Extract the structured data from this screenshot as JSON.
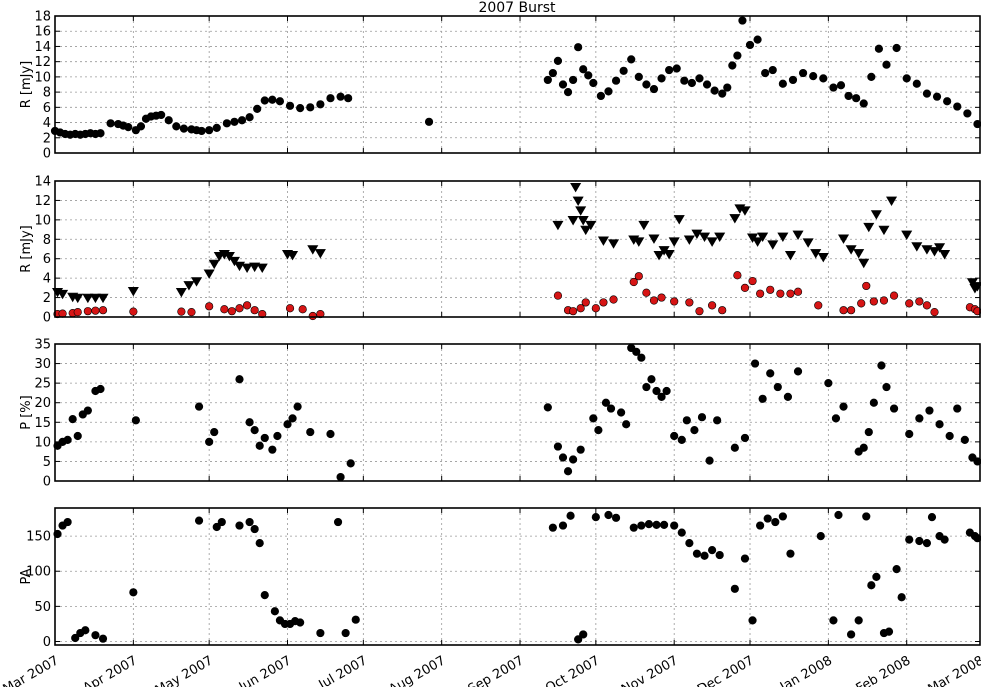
{
  "chart_data": [
    {
      "type": "scatter",
      "title": "2007 Burst",
      "ylabel": "R [mJy]",
      "ylim": [
        0,
        18
      ],
      "yticks": [
        0,
        2,
        4,
        6,
        8,
        10,
        12,
        14,
        16,
        18
      ],
      "xlim": [
        "2007-03-01",
        "2008-03-01"
      ],
      "grid": true,
      "series": [
        {
          "color": "#000000",
          "marker": "circle",
          "x": [
            "2007-03-01",
            "2007-03-03",
            "2007-03-05",
            "2007-03-07",
            "2007-03-09",
            "2007-03-11",
            "2007-03-13",
            "2007-03-15",
            "2007-03-17",
            "2007-03-19",
            "2007-03-23",
            "2007-03-26",
            "2007-03-28",
            "2007-03-30",
            "2007-04-02",
            "2007-04-04",
            "2007-04-06",
            "2007-04-08",
            "2007-04-10",
            "2007-04-12",
            "2007-04-15",
            "2007-04-18",
            "2007-04-21",
            "2007-04-24",
            "2007-04-26",
            "2007-04-28",
            "2007-05-01",
            "2007-05-04",
            "2007-05-08",
            "2007-05-11",
            "2007-05-14",
            "2007-05-17",
            "2007-05-20",
            "2007-05-23",
            "2007-05-26",
            "2007-05-29",
            "2007-06-02",
            "2007-06-06",
            "2007-06-10",
            "2007-06-14",
            "2007-06-18",
            "2007-06-22",
            "2007-06-25",
            "2007-07-27",
            "2007-09-12",
            "2007-09-14",
            "2007-09-16",
            "2007-09-18",
            "2007-09-20",
            "2007-09-22",
            "2007-09-24",
            "2007-09-26",
            "2007-09-28",
            "2007-09-30",
            "2007-10-03",
            "2007-10-06",
            "2007-10-09",
            "2007-10-12",
            "2007-10-15",
            "2007-10-18",
            "2007-10-21",
            "2007-10-24",
            "2007-10-27",
            "2007-10-30",
            "2007-11-02",
            "2007-11-05",
            "2007-11-08",
            "2007-11-11",
            "2007-11-14",
            "2007-11-17",
            "2007-11-20",
            "2007-11-22",
            "2007-11-24",
            "2007-11-26",
            "2007-11-28",
            "2007-12-01",
            "2007-12-04",
            "2007-12-07",
            "2007-12-10",
            "2007-12-14",
            "2007-12-18",
            "2007-12-22",
            "2007-12-26",
            "2007-12-30",
            "2008-01-03",
            "2008-01-06",
            "2008-01-09",
            "2008-01-12",
            "2008-01-15",
            "2008-01-18",
            "2008-01-21",
            "2008-01-24",
            "2008-01-28",
            "2008-02-01",
            "2008-02-05",
            "2008-02-09",
            "2008-02-13",
            "2008-02-17",
            "2008-02-21",
            "2008-02-25",
            "2008-02-29"
          ],
          "y": [
            2.9,
            2.7,
            2.5,
            2.4,
            2.5,
            2.4,
            2.5,
            2.6,
            2.5,
            2.6,
            3.9,
            3.8,
            3.6,
            3.4,
            3.0,
            3.5,
            4.5,
            4.8,
            4.9,
            5.0,
            4.3,
            3.5,
            3.2,
            3.1,
            3.0,
            2.9,
            3.0,
            3.3,
            3.9,
            4.1,
            4.3,
            4.7,
            5.8,
            6.9,
            7.0,
            6.8,
            6.2,
            5.9,
            6.0,
            6.4,
            7.2,
            7.4,
            7.2,
            4.1,
            9.6,
            10.5,
            12.1,
            9.0,
            8.0,
            9.6,
            13.9,
            11.0,
            10.2,
            9.2,
            7.5,
            8.1,
            9.5,
            10.8,
            12.3,
            10.0,
            9.0,
            8.4,
            9.8,
            10.9,
            11.1,
            9.5,
            9.2,
            9.8,
            9.0,
            8.2,
            7.8,
            8.6,
            11.5,
            12.8,
            17.4,
            14.2,
            14.9,
            10.5,
            10.9,
            9.1,
            9.6,
            10.5,
            10.1,
            9.8,
            8.6,
            8.9,
            7.5,
            7.2,
            6.5,
            10.0,
            13.7,
            11.6,
            13.8,
            9.8,
            9.1,
            7.8,
            7.4,
            6.8,
            6.1,
            5.2,
            3.8
          ]
        }
      ]
    },
    {
      "type": "scatter",
      "ylabel": "R [mJy]",
      "ylim": [
        0,
        14
      ],
      "yticks": [
        0,
        2,
        4,
        6,
        8,
        10,
        12,
        14
      ],
      "xlim": [
        "2007-03-01",
        "2008-03-01"
      ],
      "grid": true,
      "series": [
        {
          "color": "#000000",
          "marker": "triangle-down",
          "x": [
            "2007-03-02",
            "2007-03-04",
            "2007-03-08",
            "2007-03-10",
            "2007-03-14",
            "2007-03-17",
            "2007-03-20",
            "2007-04-01",
            "2007-04-20",
            "2007-04-23",
            "2007-04-26",
            "2007-05-01",
            "2007-05-03",
            "2007-05-05",
            "2007-05-07",
            "2007-05-09",
            "2007-05-11",
            "2007-05-13",
            "2007-05-16",
            "2007-05-19",
            "2007-05-22",
            "2007-06-01",
            "2007-06-03",
            "2007-06-11",
            "2007-06-14",
            "2007-09-16",
            "2007-09-22",
            "2007-09-23",
            "2007-09-24",
            "2007-09-25",
            "2007-09-26",
            "2007-09-27",
            "2007-09-29",
            "2007-10-04",
            "2007-10-08",
            "2007-10-16",
            "2007-10-18",
            "2007-10-20",
            "2007-10-24",
            "2007-10-26",
            "2007-10-28",
            "2007-10-30",
            "2007-11-01",
            "2007-11-03",
            "2007-11-07",
            "2007-11-10",
            "2007-11-13",
            "2007-11-16",
            "2007-11-19",
            "2007-11-25",
            "2007-11-27",
            "2007-11-29",
            "2007-12-02",
            "2007-12-04",
            "2007-12-06",
            "2007-12-10",
            "2007-12-14",
            "2007-12-17",
            "2007-12-20",
            "2007-12-24",
            "2007-12-27",
            "2007-12-30",
            "2008-01-07",
            "2008-01-10",
            "2008-01-13",
            "2008-01-15",
            "2008-01-17",
            "2008-01-20",
            "2008-01-23",
            "2008-01-26",
            "2008-02-01",
            "2008-02-05",
            "2008-02-09",
            "2008-02-12",
            "2008-02-14",
            "2008-02-16",
            "2008-02-27",
            "2008-02-28",
            "2008-02-29"
          ],
          "y": [
            2.6,
            2.4,
            2.1,
            2.0,
            2.0,
            2.0,
            2.0,
            2.7,
            2.6,
            3.3,
            3.7,
            4.5,
            5.5,
            6.3,
            6.5,
            6.3,
            5.8,
            5.3,
            5.1,
            5.2,
            5.1,
            6.5,
            6.4,
            7.0,
            6.6,
            9.5,
            10.0,
            13.4,
            12.0,
            11.0,
            10.0,
            9.0,
            9.5,
            7.9,
            7.6,
            8.0,
            7.8,
            9.5,
            8.1,
            6.4,
            6.9,
            6.5,
            7.8,
            10.1,
            8.0,
            8.6,
            8.3,
            7.8,
            8.3,
            10.2,
            11.2,
            11.0,
            8.2,
            7.8,
            8.3,
            7.5,
            8.3,
            6.4,
            8.5,
            7.7,
            6.6,
            6.2,
            8.1,
            7.0,
            6.6,
            5.6,
            9.3,
            10.6,
            9.0,
            12.0,
            8.5,
            7.3,
            7.0,
            6.8,
            7.2,
            6.5,
            3.6,
            3.0,
            3.2
          ]
        },
        {
          "color": "#d61515",
          "marker": "circle",
          "x": [
            "2007-03-02",
            "2007-03-04",
            "2007-03-08",
            "2007-03-10",
            "2007-03-14",
            "2007-03-17",
            "2007-03-20",
            "2007-04-01",
            "2007-04-20",
            "2007-04-24",
            "2007-05-01",
            "2007-05-07",
            "2007-05-10",
            "2007-05-13",
            "2007-05-16",
            "2007-05-19",
            "2007-05-22",
            "2007-06-02",
            "2007-06-07",
            "2007-06-11",
            "2007-06-14",
            "2007-09-16",
            "2007-09-20",
            "2007-09-22",
            "2007-09-25",
            "2007-09-27",
            "2007-10-01",
            "2007-10-04",
            "2007-10-08",
            "2007-10-16",
            "2007-10-18",
            "2007-10-21",
            "2007-10-24",
            "2007-10-27",
            "2007-11-01",
            "2007-11-07",
            "2007-11-11",
            "2007-11-16",
            "2007-11-20",
            "2007-11-26",
            "2007-11-29",
            "2007-12-02",
            "2007-12-05",
            "2007-12-09",
            "2007-12-13",
            "2007-12-17",
            "2007-12-20",
            "2007-12-28",
            "2008-01-07",
            "2008-01-10",
            "2008-01-14",
            "2008-01-16",
            "2008-01-19",
            "2008-01-23",
            "2008-01-27",
            "2008-02-02",
            "2008-02-06",
            "2008-02-09",
            "2008-02-12",
            "2008-02-26",
            "2008-02-28",
            "2008-02-29"
          ],
          "y": [
            0.3,
            0.35,
            0.4,
            0.5,
            0.6,
            0.65,
            0.7,
            0.55,
            0.55,
            0.5,
            1.1,
            0.8,
            0.6,
            0.9,
            1.2,
            0.7,
            0.3,
            0.9,
            0.8,
            0.1,
            0.3,
            2.2,
            0.7,
            0.6,
            0.9,
            1.5,
            0.9,
            1.5,
            1.8,
            3.6,
            4.2,
            2.5,
            1.7,
            2.0,
            1.6,
            1.5,
            0.6,
            1.2,
            0.7,
            4.3,
            3.0,
            3.7,
            2.4,
            2.8,
            2.4,
            2.4,
            2.6,
            1.2,
            0.7,
            0.7,
            1.4,
            3.2,
            1.6,
            1.7,
            2.2,
            1.4,
            1.6,
            1.2,
            0.5,
            1.0,
            0.8,
            0.6
          ]
        }
      ]
    },
    {
      "type": "scatter",
      "ylabel": "P [%]",
      "ylim": [
        0,
        35
      ],
      "yticks": [
        0,
        5,
        10,
        15,
        20,
        25,
        30,
        35
      ],
      "xlim": [
        "2007-03-01",
        "2008-03-01"
      ],
      "grid": true,
      "series": [
        {
          "color": "#000000",
          "marker": "circle",
          "x": [
            "2007-03-02",
            "2007-03-04",
            "2007-03-06",
            "2007-03-08",
            "2007-03-10",
            "2007-03-12",
            "2007-03-14",
            "2007-03-17",
            "2007-03-19",
            "2007-04-02",
            "2007-04-27",
            "2007-05-01",
            "2007-05-03",
            "2007-05-13",
            "2007-05-17",
            "2007-05-19",
            "2007-05-21",
            "2007-05-23",
            "2007-05-26",
            "2007-05-28",
            "2007-06-01",
            "2007-06-03",
            "2007-06-05",
            "2007-06-10",
            "2007-06-18",
            "2007-06-22",
            "2007-06-26",
            "2007-09-12",
            "2007-09-16",
            "2007-09-18",
            "2007-09-20",
            "2007-09-22",
            "2007-09-25",
            "2007-09-30",
            "2007-10-02",
            "2007-10-05",
            "2007-10-07",
            "2007-10-11",
            "2007-10-13",
            "2007-10-15",
            "2007-10-17",
            "2007-10-19",
            "2007-10-21",
            "2007-10-23",
            "2007-10-25",
            "2007-10-27",
            "2007-10-29",
            "2007-11-01",
            "2007-11-04",
            "2007-11-06",
            "2007-11-09",
            "2007-11-12",
            "2007-11-15",
            "2007-11-18",
            "2007-11-25",
            "2007-11-29",
            "2007-12-03",
            "2007-12-06",
            "2007-12-09",
            "2007-12-12",
            "2007-12-16",
            "2007-12-20",
            "2008-01-01",
            "2008-01-04",
            "2008-01-07",
            "2008-01-13",
            "2008-01-15",
            "2008-01-17",
            "2008-01-19",
            "2008-01-22",
            "2008-01-24",
            "2008-01-27",
            "2008-02-02",
            "2008-02-06",
            "2008-02-10",
            "2008-02-14",
            "2008-02-18",
            "2008-02-21",
            "2008-02-24",
            "2008-02-27",
            "2008-02-29"
          ],
          "y": [
            9,
            10,
            10.5,
            15.8,
            11.5,
            17,
            18,
            23,
            23.5,
            15.5,
            19,
            10,
            12.5,
            26,
            15,
            13,
            9,
            11,
            8,
            11.5,
            14.5,
            16,
            19,
            12.5,
            12,
            1,
            4.5,
            18.8,
            8.8,
            6,
            2.5,
            5.5,
            8,
            16,
            13,
            20,
            18.5,
            17.5,
            14.5,
            34,
            33,
            31.5,
            24,
            26,
            23,
            21.5,
            23,
            11.5,
            10.5,
            15.5,
            13,
            16.3,
            5.2,
            15.5,
            8.5,
            11,
            30,
            21,
            27.5,
            24,
            21.5,
            28,
            25,
            16,
            19,
            7.5,
            8.5,
            12.5,
            20,
            29.5,
            24,
            18.5,
            12,
            16,
            18,
            14.5,
            11.5,
            18.5,
            10.5,
            6,
            5
          ]
        }
      ]
    },
    {
      "type": "scatter",
      "ylabel": "PA",
      "ylim": [
        -5,
        190
      ],
      "yticks": [
        0,
        50,
        100,
        150
      ],
      "xlim": [
        "2007-03-01",
        "2008-03-01"
      ],
      "grid": true,
      "series": [
        {
          "color": "#000000",
          "marker": "circle",
          "x": [
            "2007-03-02",
            "2007-03-04",
            "2007-03-06",
            "2007-03-09",
            "2007-03-11",
            "2007-03-13",
            "2007-03-17",
            "2007-03-20",
            "2007-04-01",
            "2007-04-27",
            "2007-05-04",
            "2007-05-06",
            "2007-05-13",
            "2007-05-17",
            "2007-05-19",
            "2007-05-21",
            "2007-05-23",
            "2007-05-27",
            "2007-05-29",
            "2007-05-31",
            "2007-06-02",
            "2007-06-04",
            "2007-06-06",
            "2007-06-14",
            "2007-06-21",
            "2007-06-24",
            "2007-06-28",
            "2007-09-14",
            "2007-09-18",
            "2007-09-21",
            "2007-09-24",
            "2007-09-26",
            "2007-10-01",
            "2007-10-06",
            "2007-10-09",
            "2007-10-16",
            "2007-10-19",
            "2007-10-22",
            "2007-10-25",
            "2007-10-28",
            "2007-11-01",
            "2007-11-04",
            "2007-11-07",
            "2007-11-10",
            "2007-11-13",
            "2007-11-16",
            "2007-11-19",
            "2007-11-25",
            "2007-11-29",
            "2007-12-02",
            "2007-12-05",
            "2007-12-08",
            "2007-12-11",
            "2007-12-14",
            "2007-12-17",
            "2007-12-29",
            "2008-01-03",
            "2008-01-05",
            "2008-01-10",
            "2008-01-13",
            "2008-01-16",
            "2008-01-18",
            "2008-01-20",
            "2008-01-23",
            "2008-01-25",
            "2008-01-28",
            "2008-01-30",
            "2008-02-02",
            "2008-02-06",
            "2008-02-09",
            "2008-02-11",
            "2008-02-14",
            "2008-02-16",
            "2008-02-26",
            "2008-02-28",
            "2008-02-29"
          ],
          "y": [
            153,
            165,
            170,
            5,
            12,
            16,
            9,
            4,
            70,
            172,
            163,
            170,
            165,
            170,
            160,
            140,
            66,
            43,
            30,
            25,
            25,
            29,
            27,
            12,
            170,
            12,
            31,
            162,
            165,
            179,
            3,
            10,
            177,
            180,
            176,
            162,
            165,
            167,
            166,
            166,
            165,
            155,
            140,
            125,
            122,
            130,
            123,
            75,
            118,
            30,
            165,
            175,
            170,
            178,
            125,
            150,
            30,
            180,
            10,
            30,
            178,
            80,
            92,
            12,
            14,
            103,
            63,
            145,
            143,
            140,
            177,
            150,
            145,
            155,
            150,
            147
          ]
        }
      ]
    }
  ],
  "xaxis": {
    "tick_labels": [
      "Mar 2007",
      "Apr 2007",
      "May 2007",
      "Jun 2007",
      "Jul 2007",
      "Aug 2007",
      "Sep 2007",
      "Oct 2007",
      "Nov 2007",
      "Dec 2007",
      "Jan 2008",
      "Feb 2008",
      "Mar 2008"
    ],
    "tick_dates": [
      "2007-03-01",
      "2007-04-01",
      "2007-05-01",
      "2007-06-01",
      "2007-07-01",
      "2007-08-01",
      "2007-09-01",
      "2007-10-01",
      "2007-11-01",
      "2007-12-01",
      "2008-01-01",
      "2008-02-01",
      "2008-03-01"
    ]
  }
}
